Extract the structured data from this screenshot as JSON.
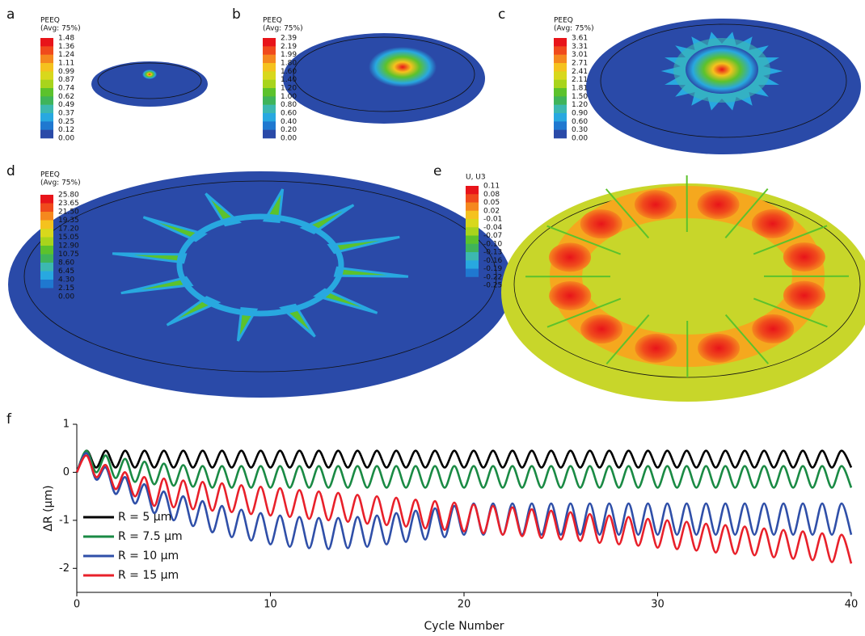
{
  "panels": [
    {
      "label": "a",
      "legend_title": [
        "PEEQ",
        "(Avg: 75%)"
      ],
      "scale": [
        "1.48",
        "1.36",
        "1.24",
        "1.11",
        "0.99",
        "0.87",
        "0.74",
        "0.62",
        "0.49",
        "0.37",
        "0.25",
        "0.12",
        "0.00"
      ]
    },
    {
      "label": "b",
      "legend_title": [
        "PEEQ",
        "(Avg: 75%)"
      ],
      "scale": [
        "2.39",
        "2.19",
        "1.99",
        "1.80",
        "1.60",
        "1.40",
        "1.20",
        "1.00",
        "0.80",
        "0.60",
        "0.40",
        "0.20",
        "0.00"
      ]
    },
    {
      "label": "c",
      "legend_title": [
        "PEEQ",
        "(Avg: 75%)"
      ],
      "scale": [
        "3.61",
        "3.31",
        "3.01",
        "2.71",
        "2.41",
        "2.11",
        "1.81",
        "1.50",
        "1.20",
        "0.90",
        "0.60",
        "0.30",
        "0.00"
      ]
    },
    {
      "label": "d",
      "legend_title": [
        "PEEQ",
        "(Avg: 75%)"
      ],
      "scale": [
        "25.80",
        "23.65",
        "21.50",
        "19.35",
        "17.20",
        "15.05",
        "12.90",
        "10.75",
        "8.60",
        "6.45",
        "4.30",
        "2.15",
        "0.00"
      ]
    },
    {
      "label": "e",
      "legend_title": [
        "U, U3"
      ],
      "scale": [
        "0.11",
        "0.08",
        "0.05",
        "0.02",
        "-0.01",
        "-0.04",
        "-0.07",
        "-0.10",
        "-0.13",
        "-0.16",
        "-0.19",
        "-0.22",
        "-0.25"
      ]
    }
  ],
  "chart_data": {
    "type": "line",
    "panel_label": "f",
    "xlabel": "Cycle Number",
    "ylabel": "ΔR (μm)",
    "xlim": [
      0,
      40
    ],
    "xticks": [
      0,
      10,
      20,
      30,
      40
    ],
    "ylim": [
      -2.5,
      1
    ],
    "yticks": [
      1,
      0,
      -1,
      -2
    ],
    "legend": "lower left",
    "x": [
      0,
      0.5,
      1,
      1.5,
      2,
      2.5,
      3,
      3.5,
      4,
      4.5,
      5,
      5.5,
      6,
      6.5,
      7,
      7.5,
      8,
      8.5,
      9,
      9.5,
      10,
      10.5,
      11,
      11.5,
      12,
      12.5,
      13,
      13.5,
      14,
      14.5,
      15,
      15.5,
      16,
      16.5,
      17,
      17.5,
      18,
      18.5,
      19,
      19.5,
      20,
      20.5,
      21,
      21.5,
      22,
      22.5,
      23,
      23.5,
      24,
      24.5,
      25,
      25.5,
      26,
      26.5,
      27,
      27.5,
      28,
      28.5,
      29,
      29.5,
      30,
      30.5,
      31,
      31.5,
      32,
      32.5,
      33,
      33.5,
      34,
      34.5,
      35,
      35.5,
      36,
      36.5,
      37,
      37.5,
      38,
      38.5,
      39,
      39.5,
      40
    ],
    "series": [
      {
        "name": "R = 5 μm",
        "color": "#000000",
        "values": [
          0,
          0.45,
          0.1,
          0.45,
          0.1,
          0.45,
          0.1,
          0.45,
          0.1,
          0.45,
          0.1,
          0.45,
          0.1,
          0.45,
          0.1,
          0.45,
          0.1,
          0.45,
          0.1,
          0.45,
          0.1,
          0.45,
          0.1,
          0.45,
          0.1,
          0.45,
          0.1,
          0.45,
          0.1,
          0.45,
          0.1,
          0.45,
          0.1,
          0.45,
          0.1,
          0.45,
          0.1,
          0.45,
          0.1,
          0.45,
          0.1,
          0.45,
          0.1,
          0.45,
          0.1,
          0.45,
          0.1,
          0.45,
          0.1,
          0.45,
          0.1,
          0.45,
          0.1,
          0.45,
          0.1,
          0.45,
          0.1,
          0.45,
          0.1,
          0.45,
          0.1,
          0.45,
          0.1,
          0.45,
          0.1,
          0.45,
          0.1,
          0.45,
          0.1,
          0.45,
          0.1,
          0.45,
          0.1,
          0.45,
          0.1,
          0.45,
          0.1,
          0.45,
          0.1,
          0.45,
          0.1
        ]
      },
      {
        "name": "R = 7.5 μm",
        "color": "#1a8a44",
        "values": [
          0,
          0.45,
          0.0,
          0.35,
          -0.12,
          0.28,
          -0.2,
          0.22,
          -0.25,
          0.18,
          -0.28,
          0.15,
          -0.3,
          0.13,
          -0.32,
          0.13,
          -0.32,
          0.13,
          -0.32,
          0.13,
          -0.32,
          0.13,
          -0.32,
          0.13,
          -0.32,
          0.13,
          -0.32,
          0.13,
          -0.32,
          0.13,
          -0.32,
          0.13,
          -0.32,
          0.13,
          -0.32,
          0.13,
          -0.32,
          0.13,
          -0.32,
          0.13,
          -0.32,
          0.13,
          -0.32,
          0.13,
          -0.32,
          0.13,
          -0.32,
          0.13,
          -0.32,
          0.13,
          -0.32,
          0.13,
          -0.32,
          0.13,
          -0.32,
          0.13,
          -0.32,
          0.13,
          -0.32,
          0.13,
          -0.32,
          0.13,
          -0.32,
          0.13,
          -0.32,
          0.13,
          -0.32,
          0.13,
          -0.32,
          0.13,
          -0.32,
          0.13,
          -0.32,
          0.13,
          -0.32,
          0.13,
          -0.32,
          0.13,
          -0.32,
          0.13,
          -0.32
        ]
      },
      {
        "name": "R = 10 μm",
        "color": "#2f4fa8",
        "values": [
          0,
          0.4,
          -0.15,
          0.1,
          -0.45,
          -0.1,
          -0.65,
          -0.25,
          -0.85,
          -0.4,
          -1.0,
          -0.5,
          -1.12,
          -0.6,
          -1.25,
          -0.7,
          -1.35,
          -0.78,
          -1.42,
          -0.85,
          -1.5,
          -0.9,
          -1.55,
          -0.93,
          -1.58,
          -0.95,
          -1.6,
          -0.95,
          -1.58,
          -0.93,
          -1.55,
          -0.9,
          -1.5,
          -0.85,
          -1.45,
          -0.8,
          -1.4,
          -0.75,
          -1.35,
          -0.7,
          -1.3,
          -0.65,
          -1.3,
          -0.65,
          -1.3,
          -0.65,
          -1.3,
          -0.65,
          -1.3,
          -0.65,
          -1.3,
          -0.65,
          -1.3,
          -0.65,
          -1.3,
          -0.65,
          -1.3,
          -0.65,
          -1.3,
          -0.65,
          -1.3,
          -0.65,
          -1.3,
          -0.65,
          -1.3,
          -0.65,
          -1.3,
          -0.65,
          -1.3,
          -0.65,
          -1.3,
          -0.65,
          -1.3,
          -0.65,
          -1.3,
          -0.65,
          -1.3,
          -0.65,
          -1.3,
          -0.65,
          -1.3
        ]
      },
      {
        "name": "R = 15 μm",
        "color": "#e8202a",
        "values": [
          0,
          0.35,
          -0.1,
          0.15,
          -0.35,
          0.0,
          -0.5,
          -0.1,
          -0.7,
          -0.13,
          -0.73,
          -0.17,
          -0.77,
          -0.2,
          -0.8,
          -0.23,
          -0.83,
          -0.27,
          -0.87,
          -0.3,
          -0.9,
          -0.33,
          -0.93,
          -0.37,
          -0.97,
          -0.4,
          -1.0,
          -0.43,
          -1.03,
          -0.47,
          -1.07,
          -0.5,
          -1.1,
          -0.53,
          -1.13,
          -0.57,
          -1.17,
          -0.6,
          -1.2,
          -0.63,
          -1.23,
          -0.67,
          -1.27,
          -0.7,
          -1.3,
          -0.73,
          -1.33,
          -0.77,
          -1.37,
          -0.8,
          -1.4,
          -0.83,
          -1.43,
          -0.87,
          -1.47,
          -0.9,
          -1.5,
          -0.93,
          -1.53,
          -0.97,
          -1.57,
          -1.0,
          -1.6,
          -1.03,
          -1.63,
          -1.07,
          -1.67,
          -1.1,
          -1.7,
          -1.13,
          -1.73,
          -1.17,
          -1.77,
          -1.2,
          -1.8,
          -1.23,
          -1.83,
          -1.27,
          -1.87,
          -1.3,
          -1.9
        ]
      }
    ]
  }
}
